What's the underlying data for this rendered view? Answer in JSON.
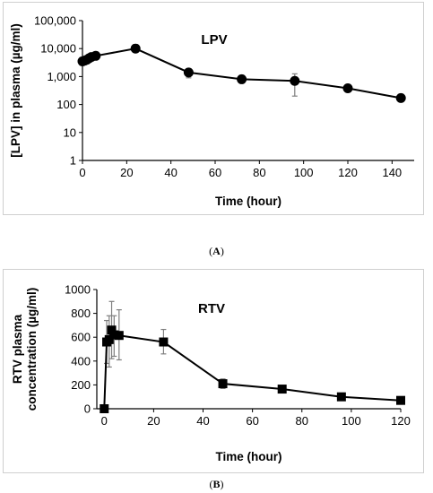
{
  "captions": {
    "a": "A",
    "b": "B"
  },
  "chart_data": [
    {
      "type": "line",
      "title": "LPV",
      "xlabel": "Time (hour)",
      "ylabel": "[LPV] in plasma (µg/ml)",
      "yscale": "log",
      "xlim": [
        0,
        150
      ],
      "ylim": [
        1,
        100000
      ],
      "xticks": [
        0,
        20,
        40,
        60,
        80,
        100,
        120,
        140
      ],
      "yticks": [
        1,
        10,
        100,
        1000,
        10000,
        100000
      ],
      "yticklabels": [
        "1",
        "10",
        "100",
        "1,000",
        "10,000",
        "100,000"
      ],
      "marker": "circle",
      "grid": false,
      "x": [
        0,
        1,
        2,
        3,
        4,
        6,
        24,
        48,
        72,
        96,
        120,
        144
      ],
      "y": [
        3500,
        3700,
        4000,
        4500,
        5000,
        5500,
        10000,
        1400,
        800,
        700,
        380,
        170
      ],
      "err_low": [
        3200,
        3400,
        3600,
        4000,
        4500,
        5000,
        7500,
        900,
        720,
        200,
        340,
        150
      ],
      "err_high": [
        3800,
        4100,
        4500,
        5000,
        5600,
        6000,
        14000,
        1800,
        880,
        1250,
        420,
        190
      ]
    },
    {
      "type": "line",
      "title": "RTV",
      "xlabel": "Time (hour)",
      "ylabel": "RTV plasma concentration (µg/ml)",
      "ylabel_lines": [
        "RTV plasma",
        "concentration (µg/ml)"
      ],
      "xlim": [
        -3,
        120
      ],
      "ylim": [
        0,
        1000
      ],
      "xticks": [
        0,
        20,
        40,
        60,
        80,
        100,
        120
      ],
      "yticks": [
        0,
        200,
        400,
        600,
        800,
        1000
      ],
      "marker": "square",
      "grid": false,
      "x": [
        0,
        1,
        2,
        3,
        4,
        6,
        24,
        48,
        72,
        96,
        120
      ],
      "y": [
        0,
        560,
        580,
        660,
        620,
        615,
        560,
        210,
        165,
        100,
        70
      ],
      "err_low": [
        0,
        380,
        350,
        420,
        440,
        410,
        460,
        170,
        135,
        80,
        60
      ],
      "err_high": [
        0,
        740,
        780,
        900,
        780,
        830,
        665,
        250,
        195,
        120,
        80
      ]
    }
  ]
}
